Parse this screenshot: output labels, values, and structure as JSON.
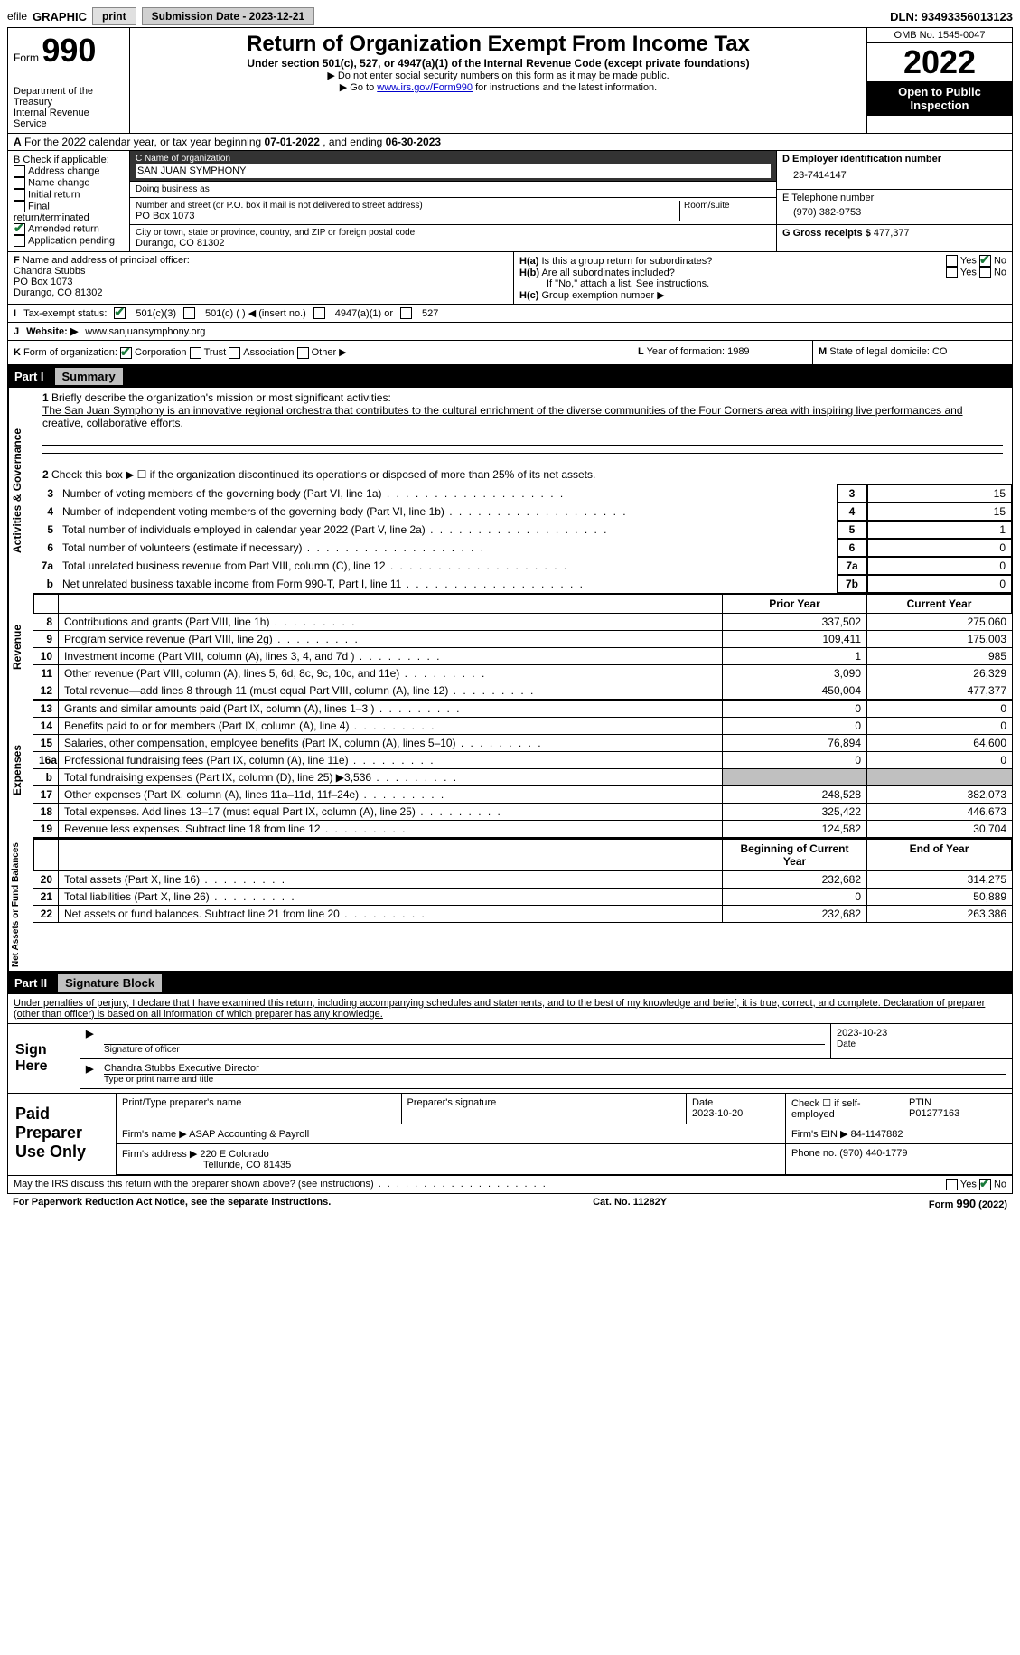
{
  "top": {
    "efile_prefix": "efile",
    "efile_label": "GRAPHIC",
    "print_btn": "print",
    "submission_label": "Submission Date - 2023-12-21",
    "dln": "DLN: 93493356013123"
  },
  "header": {
    "form_word": "Form",
    "form_number": "990",
    "dept": "Department of the Treasury\nInternal Revenue Service",
    "title": "Return of Organization Exempt From Income Tax",
    "subtitle": "Under section 501(c), 527, or 4947(a)(1) of the Internal Revenue Code (except private foundations)",
    "note1": "▶ Do not enter social security numbers on this form as it may be made public.",
    "note2_pre": "▶ Go to ",
    "note2_link": "www.irs.gov/Form990",
    "note2_post": " for instructions and the latest information.",
    "omb": "OMB No. 1545-0047",
    "year": "2022",
    "inspect": "Open to Public Inspection"
  },
  "row_a": {
    "label": "A",
    "text_pre": "For the 2022 calendar year, or tax year beginning ",
    "begin": "07-01-2022",
    "text_mid": " , and ending ",
    "end": "06-30-2023"
  },
  "section_b": {
    "b_label": "B Check if applicable:",
    "b_items": [
      "Address change",
      "Name change",
      "Initial return",
      "Final return/terminated",
      "Amended return",
      "Application pending"
    ],
    "b_checked_index": 4,
    "c_name_label": "C Name of organization",
    "c_name": "SAN JUAN SYMPHONY",
    "dba_label": "Doing business as",
    "dba": "",
    "addr_label": "Number and street (or P.O. box if mail is not delivered to street address)",
    "room_label": "Room/suite",
    "addr": "PO Box 1073",
    "city_label": "City or town, state or province, country, and ZIP or foreign postal code",
    "city": "Durango, CO  81302",
    "d_label": "D Employer identification number",
    "d_val": "23-7414147",
    "e_label": "E Telephone number",
    "e_val": "(970) 382-9753",
    "g_label": "G Gross receipts $",
    "g_val": "477,377"
  },
  "section_fh": {
    "f_label": "F",
    "f_text": "Name and address of principal officer:",
    "f_name": "Chandra Stubbs",
    "f_addr1": "PO Box 1073",
    "f_addr2": "Durango, CO  81302",
    "ha_label": "H(a)",
    "ha_text": "Is this a group return for subordinates?",
    "ha_no_checked": true,
    "hb_label": "H(b)",
    "hb_text": "Are all subordinates included?",
    "hb_note": "If \"No,\" attach a list. See instructions.",
    "hc_label": "H(c)",
    "hc_text": "Group exemption number ▶"
  },
  "row_i": {
    "label": "I",
    "text": "Tax-exempt status:",
    "opt1": "501(c)(3)",
    "opt2": "501(c) (   ) ◀ (insert no.)",
    "opt3": "4947(a)(1) or",
    "opt4": "527",
    "checked": 0
  },
  "row_j": {
    "label": "J",
    "text": "Website: ▶",
    "val": "www.sanjuansymphony.org"
  },
  "row_k": {
    "k_label": "K",
    "k_text": "Form of organization:",
    "k_opts": [
      "Corporation",
      "Trust",
      "Association",
      "Other ▶"
    ],
    "k_checked": 0,
    "l_label": "L",
    "l_text": "Year of formation:",
    "l_val": "1989",
    "m_label": "M",
    "m_text": "State of legal domicile:",
    "m_val": "CO"
  },
  "part1": {
    "part": "Part I",
    "title": "Summary"
  },
  "activities": {
    "side": "Activities & Governance",
    "l1_num": "1",
    "l1_text": "Briefly describe the organization's mission or most significant activities:",
    "l1_val": "The San Juan Symphony is an innovative regional orchestra that contributes to the cultural enrichment of the diverse communities of the Four Corners area with inspiring live performances and creative, collaborative efforts.",
    "l2_num": "2",
    "l2_text": "Check this box ▶ ☐ if the organization discontinued its operations or disposed of more than 25% of its net assets.",
    "rows": [
      {
        "n": "3",
        "d": "Number of voting members of the governing body (Part VI, line 1a)",
        "box": "3",
        "v": "15"
      },
      {
        "n": "4",
        "d": "Number of independent voting members of the governing body (Part VI, line 1b)",
        "box": "4",
        "v": "15"
      },
      {
        "n": "5",
        "d": "Total number of individuals employed in calendar year 2022 (Part V, line 2a)",
        "box": "5",
        "v": "1"
      },
      {
        "n": "6",
        "d": "Total number of volunteers (estimate if necessary)",
        "box": "6",
        "v": "0"
      },
      {
        "n": "7a",
        "d": "Total unrelated business revenue from Part VIII, column (C), line 12",
        "box": "7a",
        "v": "0"
      },
      {
        "n": "b",
        "d": "Net unrelated business taxable income from Form 990-T, Part I, line 11",
        "box": "7b",
        "v": "0"
      }
    ]
  },
  "revenue": {
    "side": "Revenue",
    "header_prior": "Prior Year",
    "header_current": "Current Year",
    "rows": [
      {
        "n": "8",
        "d": "Contributions and grants (Part VIII, line 1h)",
        "p": "337,502",
        "c": "275,060"
      },
      {
        "n": "9",
        "d": "Program service revenue (Part VIII, line 2g)",
        "p": "109,411",
        "c": "175,003"
      },
      {
        "n": "10",
        "d": "Investment income (Part VIII, column (A), lines 3, 4, and 7d )",
        "p": "1",
        "c": "985"
      },
      {
        "n": "11",
        "d": "Other revenue (Part VIII, column (A), lines 5, 6d, 8c, 9c, 10c, and 11e)",
        "p": "3,090",
        "c": "26,329"
      },
      {
        "n": "12",
        "d": "Total revenue—add lines 8 through 11 (must equal Part VIII, column (A), line 12)",
        "p": "450,004",
        "c": "477,377"
      }
    ]
  },
  "expenses": {
    "side": "Expenses",
    "rows": [
      {
        "n": "13",
        "d": "Grants and similar amounts paid (Part IX, column (A), lines 1–3 )",
        "p": "0",
        "c": "0"
      },
      {
        "n": "14",
        "d": "Benefits paid to or for members (Part IX, column (A), line 4)",
        "p": "0",
        "c": "0"
      },
      {
        "n": "15",
        "d": "Salaries, other compensation, employee benefits (Part IX, column (A), lines 5–10)",
        "p": "76,894",
        "c": "64,600"
      },
      {
        "n": "16a",
        "d": "Professional fundraising fees (Part IX, column (A), line 11e)",
        "p": "0",
        "c": "0"
      },
      {
        "n": "b",
        "d": "Total fundraising expenses (Part IX, column (D), line 25) ▶3,536",
        "p": "",
        "c": "",
        "shaded": true
      },
      {
        "n": "17",
        "d": "Other expenses (Part IX, column (A), lines 11a–11d, 11f–24e)",
        "p": "248,528",
        "c": "382,073"
      },
      {
        "n": "18",
        "d": "Total expenses. Add lines 13–17 (must equal Part IX, column (A), line 25)",
        "p": "325,422",
        "c": "446,673"
      },
      {
        "n": "19",
        "d": "Revenue less expenses. Subtract line 18 from line 12",
        "p": "124,582",
        "c": "30,704"
      }
    ]
  },
  "netassets": {
    "side": "Net Assets or Fund Balances",
    "header_prior": "Beginning of Current Year",
    "header_current": "End of Year",
    "rows": [
      {
        "n": "20",
        "d": "Total assets (Part X, line 16)",
        "p": "232,682",
        "c": "314,275"
      },
      {
        "n": "21",
        "d": "Total liabilities (Part X, line 26)",
        "p": "0",
        "c": "50,889"
      },
      {
        "n": "22",
        "d": "Net assets or fund balances. Subtract line 21 from line 20",
        "p": "232,682",
        "c": "263,386"
      }
    ]
  },
  "part2": {
    "part": "Part II",
    "title": "Signature Block",
    "declaration": "Under penalties of perjury, I declare that I have examined this return, including accompanying schedules and statements, and to the best of my knowledge and belief, it is true, correct, and complete. Declaration of preparer (other than officer) is based on all information of which preparer has any knowledge."
  },
  "sign": {
    "label": "Sign Here",
    "sig_label": "Signature of officer",
    "date_label": "Date",
    "date_val": "2023-10-23",
    "name_label": "Type or print name and title",
    "name_val": "Chandra Stubbs  Executive Director"
  },
  "preparer": {
    "label": "Paid Preparer Use Only",
    "h_name": "Print/Type preparer's name",
    "h_sig": "Preparer's signature",
    "h_date": "Date",
    "date_val": "2023-10-20",
    "h_check": "Check ☐ if self-employed",
    "h_ptin": "PTIN",
    "ptin_val": "P01277163",
    "firm_name_label": "Firm's name    ▶",
    "firm_name": "ASAP Accounting & Payroll",
    "firm_ein_label": "Firm's EIN ▶",
    "firm_ein": "84-1147882",
    "firm_addr_label": "Firm's address ▶",
    "firm_addr1": "220 E Colorado",
    "firm_addr2": "Telluride, CO  81435",
    "phone_label": "Phone no.",
    "phone": "(970) 440-1779"
  },
  "footer_q": {
    "text": "May the IRS discuss this return with the preparer shown above? (see instructions)",
    "no_checked": true
  },
  "footer": {
    "paperwork": "For Paperwork Reduction Act Notice, see the separate instructions.",
    "cat": "Cat. No. 11282Y",
    "form": "Form 990 (2022)"
  }
}
